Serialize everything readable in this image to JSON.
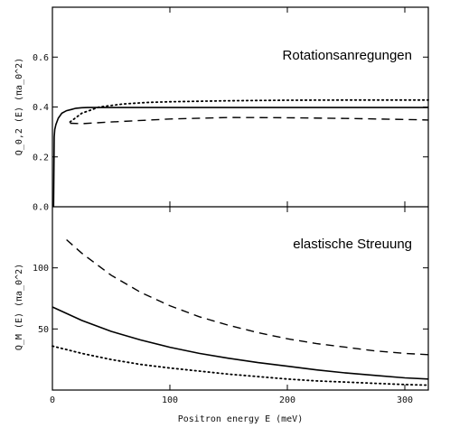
{
  "chart_data": [
    {
      "type": "line",
      "annotation": "Rotationsanregungen",
      "ylabel": "Q_0,2 (E) (πa_0^2)",
      "xlabel": "",
      "xlim": [
        0,
        320
      ],
      "ylim": [
        0,
        0.8
      ],
      "xticks": [
        0,
        100,
        200,
        300
      ],
      "yticks": [
        "0.0",
        "0.2",
        "0.4",
        "0.6"
      ],
      "ytick_values": [
        0,
        0.2,
        0.4,
        0.6
      ],
      "grid": false,
      "series": [
        {
          "style": "solid",
          "x": [
            1,
            1.5,
            2,
            3,
            5,
            8,
            12,
            16,
            20,
            25,
            30,
            50,
            100,
            150,
            200,
            250,
            300,
            320
          ],
          "y": [
            0.0,
            0.28,
            0.31,
            0.33,
            0.355,
            0.375,
            0.385,
            0.39,
            0.395,
            0.397,
            0.398,
            0.398,
            0.398,
            0.398,
            0.398,
            0.398,
            0.398,
            0.398
          ]
        },
        {
          "style": "dotted",
          "x": [
            15,
            25,
            40,
            60,
            80,
            100,
            150,
            200,
            250,
            300,
            320
          ],
          "y": [
            0.34,
            0.375,
            0.4,
            0.412,
            0.418,
            0.421,
            0.425,
            0.427,
            0.428,
            0.428,
            0.428
          ]
        },
        {
          "style": "dashed",
          "x": [
            15,
            25,
            50,
            100,
            150,
            200,
            250,
            300,
            320
          ],
          "y": [
            0.335,
            0.333,
            0.34,
            0.352,
            0.358,
            0.357,
            0.354,
            0.35,
            0.348
          ]
        }
      ]
    },
    {
      "type": "line",
      "annotation": "elastische Streuung",
      "ylabel": "Q_M (E) (πa_0^2)",
      "xlabel": "Positron energy E (meV)",
      "xlim": [
        0,
        320
      ],
      "ylim": [
        0,
        150
      ],
      "xticks": [
        0,
        100,
        200,
        300
      ],
      "yticks": [
        "50",
        "100"
      ],
      "ytick_values": [
        50,
        100
      ],
      "grid": false,
      "series": [
        {
          "style": "solid",
          "x": [
            0,
            25,
            50,
            75,
            100,
            125,
            150,
            175,
            200,
            225,
            250,
            275,
            300,
            320
          ],
          "y": [
            68,
            57,
            48,
            41,
            35,
            30,
            26,
            22.5,
            19.5,
            16.5,
            14,
            12,
            10,
            9
          ]
        },
        {
          "style": "dashed",
          "x": [
            12,
            25,
            50,
            75,
            100,
            125,
            150,
            175,
            200,
            225,
            250,
            275,
            300,
            320
          ],
          "y": [
            123,
            112,
            94,
            80,
            69,
            60,
            53,
            47,
            42,
            38,
            35,
            32,
            30,
            29
          ]
        },
        {
          "style": "dotted",
          "x": [
            0,
            25,
            50,
            75,
            100,
            125,
            150,
            175,
            200,
            225,
            250,
            275,
            300,
            320
          ],
          "y": [
            36,
            30,
            25,
            21,
            18,
            15.5,
            13,
            11,
            9,
            7.5,
            6.5,
            5.5,
            4.5,
            4
          ]
        }
      ]
    }
  ]
}
